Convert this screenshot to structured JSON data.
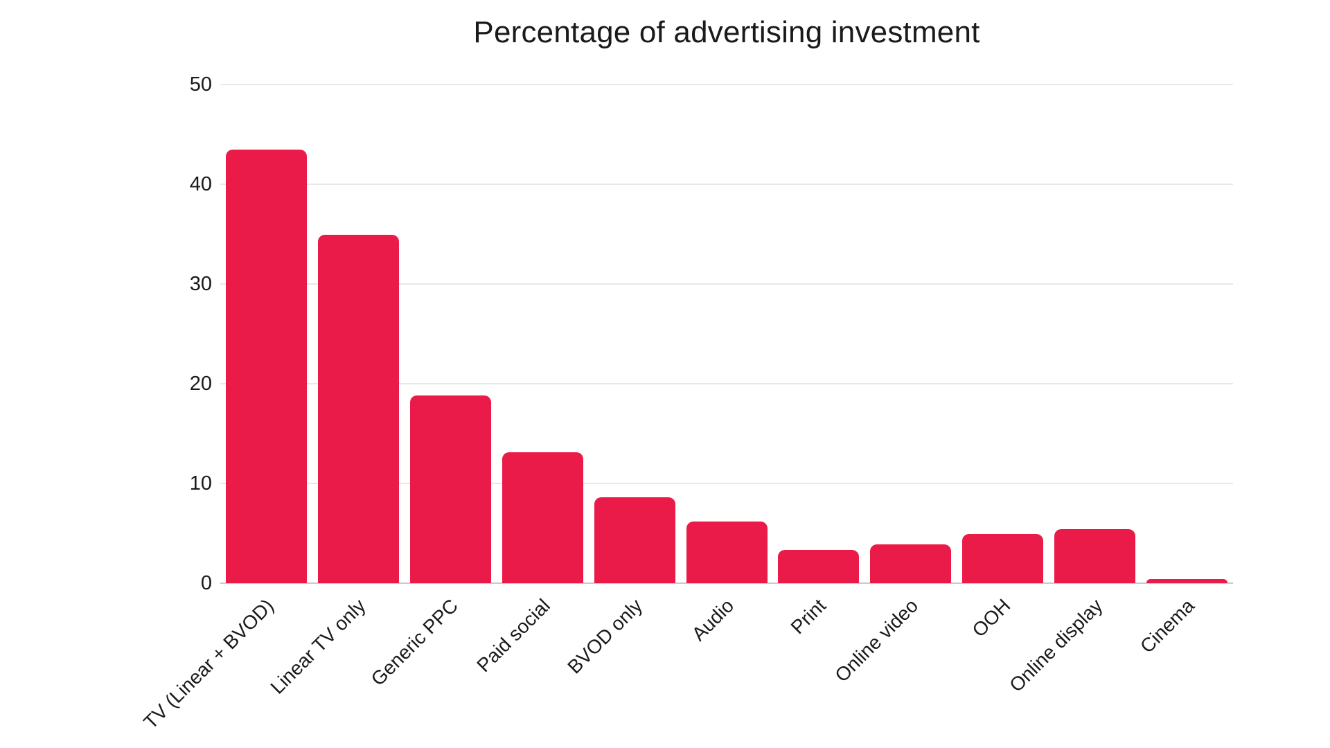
{
  "page": {
    "background": "#ffffff"
  },
  "chart_data": {
    "type": "bar",
    "title": "Percentage of advertising investment",
    "categories": [
      "TV (Linear + BVOD)",
      "Linear TV only",
      "Generic PPC",
      "Paid social",
      "BVOD only",
      "Audio",
      "Print",
      "Online video",
      "OOH",
      "Online display",
      "Cinema"
    ],
    "values": [
      43.5,
      34.9,
      18.8,
      13.1,
      8.6,
      6.2,
      3.3,
      3.9,
      4.9,
      5.4,
      0.4
    ],
    "xlabel": "",
    "ylabel": "",
    "ylim": [
      0,
      50
    ],
    "yticks": [
      0,
      10,
      20,
      30,
      40,
      50
    ],
    "grid": true,
    "legend": false,
    "colors": {
      "bar": "#EA1B48",
      "grid": "#E8E8E8",
      "axis": "#C5CBD1",
      "text": "#1A1A1A",
      "background": "#FFFFFF"
    }
  }
}
